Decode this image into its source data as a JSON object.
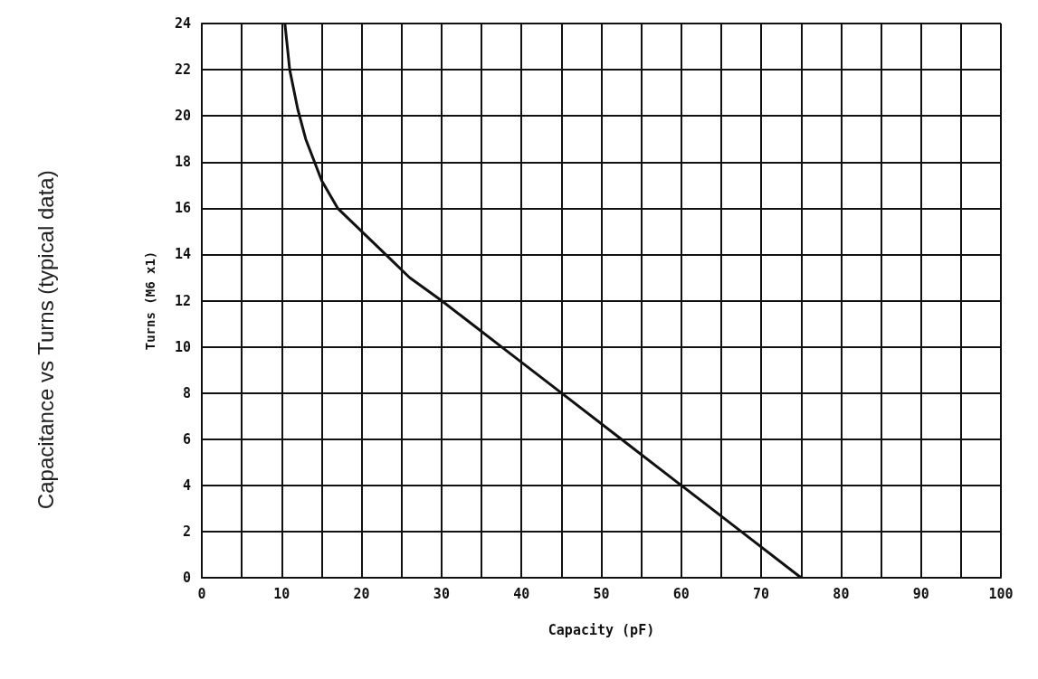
{
  "chart_data": {
    "type": "line",
    "title": "Capacitance vs Turns (typical data)",
    "xlabel": "Capacity (pF)",
    "ylabel": "Turns (M6 x1)",
    "series": [
      {
        "color": "#111111",
        "x": [
          10.4,
          11,
          12,
          13,
          15,
          17,
          20,
          23,
          26,
          30,
          37.5,
          45,
          52.5,
          60,
          67.5,
          75
        ],
        "values": [
          24,
          22,
          20.3,
          19,
          17.2,
          16,
          15,
          14,
          13,
          12,
          10,
          8,
          6,
          4,
          2,
          0
        ]
      }
    ],
    "xlim": [
      0,
      100
    ],
    "xticks": [
      0,
      10,
      20,
      30,
      40,
      50,
      60,
      70,
      80,
      90,
      100
    ],
    "ylim": [
      0,
      24
    ],
    "yticks": [
      0,
      2,
      4,
      6,
      8,
      10,
      12,
      14,
      16,
      18,
      20,
      22,
      24
    ],
    "grid": true,
    "marker": "none",
    "line_style": "solid"
  }
}
